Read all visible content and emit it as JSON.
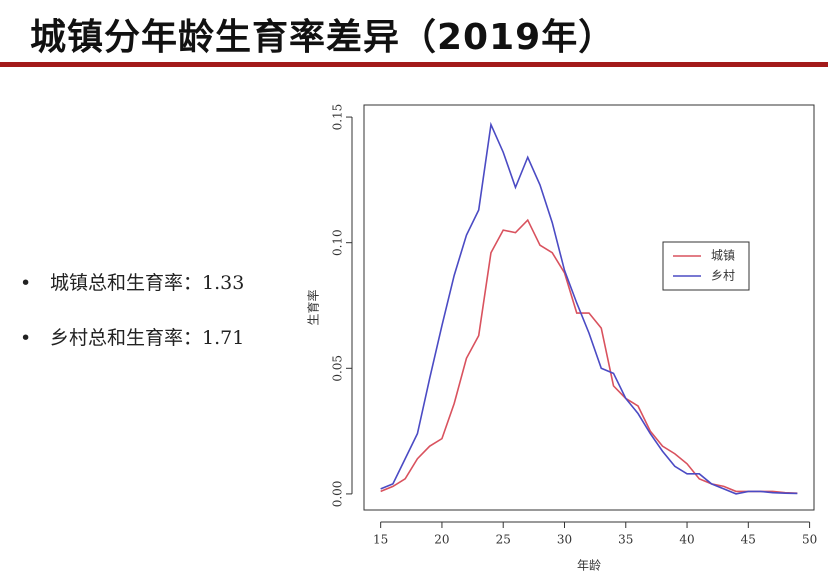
{
  "header": {
    "title": "城镇分年龄生育率差异（2019年）"
  },
  "bullets": [
    "城镇总和生育率：1.33",
    "乡村总和生育率：1.71"
  ],
  "chart_data": {
    "type": "line",
    "x_label": "年龄",
    "y_label": "生育率",
    "x": [
      15,
      16,
      17,
      18,
      19,
      20,
      21,
      22,
      23,
      24,
      25,
      26,
      27,
      28,
      29,
      30,
      31,
      32,
      33,
      34,
      35,
      36,
      37,
      38,
      39,
      40,
      41,
      42,
      43,
      44,
      45,
      46,
      47,
      48,
      49
    ],
    "series": [
      {
        "name": "城镇",
        "color": "#d9525e",
        "values": [
          0.001,
          0.003,
          0.006,
          0.014,
          0.019,
          0.022,
          0.036,
          0.054,
          0.063,
          0.096,
          0.105,
          0.104,
          0.109,
          0.099,
          0.096,
          0.088,
          0.072,
          0.072,
          0.066,
          0.043,
          0.038,
          0.035,
          0.025,
          0.019,
          0.016,
          0.012,
          0.006,
          0.004,
          0.003,
          0.001,
          0.001,
          0.001,
          0.001,
          0.0005,
          0.0003
        ]
      },
      {
        "name": "乡村",
        "color": "#4b4bc4",
        "values": [
          0.002,
          0.004,
          0.014,
          0.024,
          0.046,
          0.067,
          0.087,
          0.103,
          0.113,
          0.147,
          0.136,
          0.122,
          0.134,
          0.123,
          0.108,
          0.089,
          0.076,
          0.064,
          0.05,
          0.048,
          0.038,
          0.032,
          0.024,
          0.017,
          0.011,
          0.008,
          0.008,
          0.004,
          0.002,
          0,
          0.001,
          0.001,
          0.0005,
          0.0003,
          0.0002
        ]
      }
    ],
    "xlim": [
      13.64,
      50.36
    ],
    "xticks": [
      15,
      20,
      25,
      30,
      35,
      40,
      45,
      50
    ],
    "ylim": [
      -0.0064,
      0.1548
    ],
    "yticks": [
      {
        "value": 0,
        "label": "0.00"
      },
      0.05,
      {
        "value": 0.1,
        "label": "0.10"
      },
      0.15
    ],
    "legend": "right"
  }
}
